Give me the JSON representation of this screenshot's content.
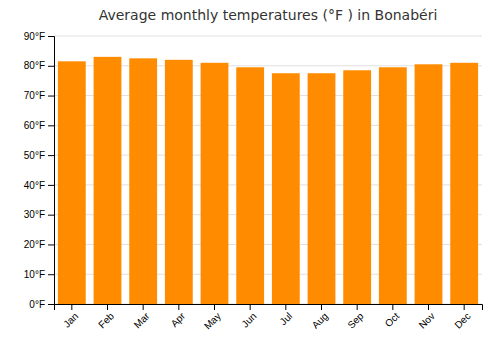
{
  "chart_data": {
    "type": "bar",
    "title": "Average monthly temperatures (°F ) in Bonabéri",
    "categories": [
      "Jan",
      "Feb",
      "Mar",
      "Apr",
      "May",
      "Jun",
      "Jul",
      "Aug",
      "Sep",
      "Oct",
      "Nov",
      "Dec"
    ],
    "values": [
      81.5,
      83.0,
      82.5,
      82.0,
      81.0,
      79.5,
      77.5,
      77.5,
      78.5,
      79.5,
      80.5,
      81.0
    ],
    "color": "#ff8c00",
    "ylim": [
      0,
      90
    ],
    "yticks": [
      {
        "value": 0,
        "label": "0°F"
      },
      {
        "value": 10,
        "label": "10°F"
      },
      {
        "value": 20,
        "label": "20°F"
      },
      {
        "value": 30,
        "label": "30°F"
      },
      {
        "value": 40,
        "label": "40°F"
      },
      {
        "value": 50,
        "label": "50°F"
      },
      {
        "value": 60,
        "label": "60°F"
      },
      {
        "value": 70,
        "label": "70°F"
      },
      {
        "value": 80,
        "label": "80°F"
      },
      {
        "value": 90,
        "label": "90°F"
      }
    ],
    "grid": true
  }
}
